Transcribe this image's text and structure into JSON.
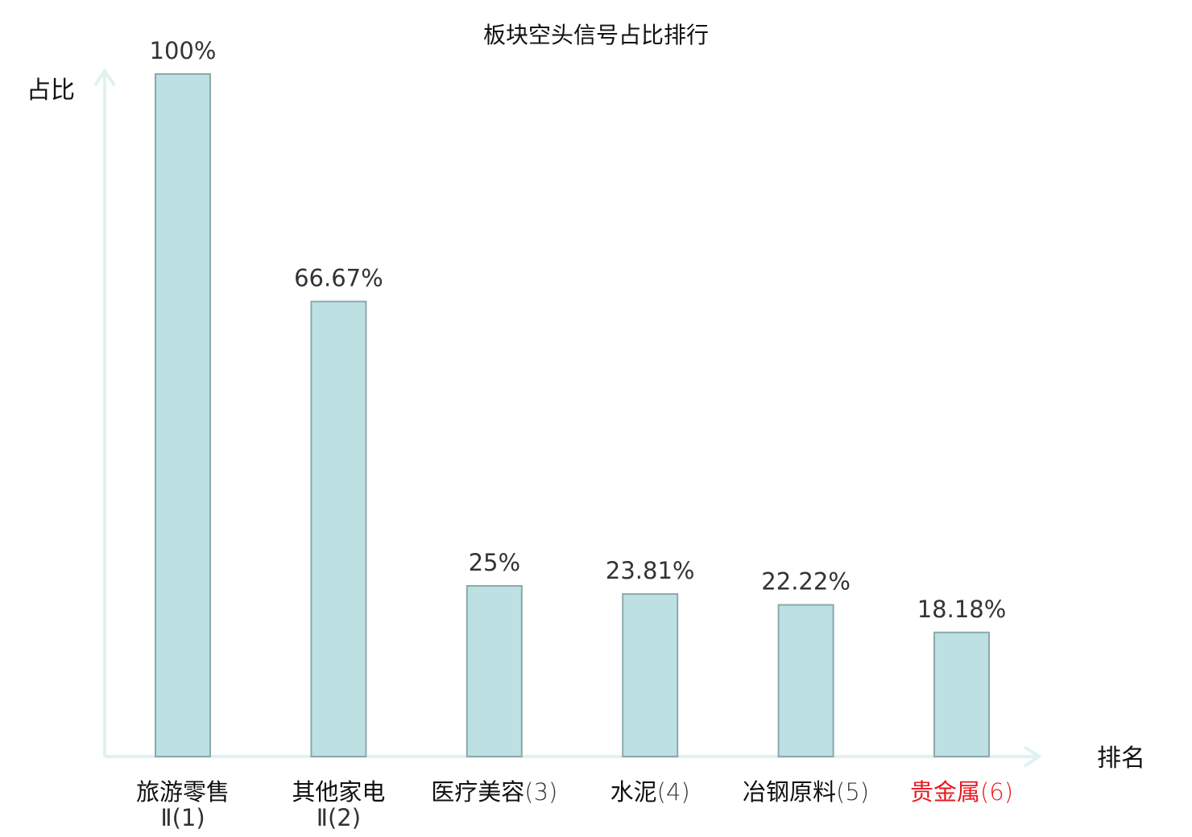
{
  "chart_data": {
    "type": "bar",
    "title": "板块空头信号占比排行",
    "ylabel": "占比",
    "xlabel": "排名",
    "ylim": [
      0,
      100
    ],
    "grid": false,
    "legend": "none",
    "categories": [
      {
        "name": "旅游零售",
        "rank": "Ⅱ(1)",
        "highlight": false
      },
      {
        "name": "其他家电",
        "rank": "Ⅱ(2)",
        "highlight": false
      },
      {
        "name": "医疗美容",
        "rank": "(3)",
        "highlight": false
      },
      {
        "name": "水泥",
        "rank": "(4)",
        "highlight": false
      },
      {
        "name": "冶钢原料",
        "rank": "(5)",
        "highlight": false
      },
      {
        "name": "贵金属",
        "rank": "(6)",
        "highlight": true
      }
    ],
    "values": [
      100,
      66.67,
      25,
      23.81,
      22.22,
      18.18
    ],
    "value_labels": [
      "100%",
      "66.67%",
      "25%",
      "23.81%",
      "22.22%",
      "18.18%"
    ]
  },
  "colors": {
    "bar_fill": "#bde1e3",
    "bar_stroke": "#8aa9ab",
    "axis": "#dff2ef",
    "label_normal": "#111111",
    "rank_normal": "#333333",
    "highlight": "#e8191f"
  }
}
